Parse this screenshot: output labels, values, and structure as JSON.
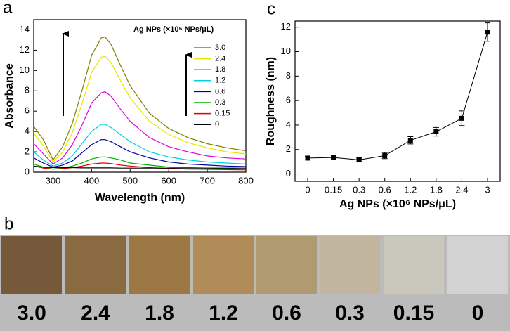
{
  "chart_data": [
    {
      "type": "line",
      "panel_label": "a",
      "x_label": "Wavelength (nm)",
      "y_label": "Absorbance",
      "legend_title": "Ag NPs (×10⁶ NPs/μL)",
      "x": [
        250,
        275,
        300,
        325,
        350,
        375,
        400,
        425,
        435,
        450,
        475,
        500,
        550,
        600,
        650,
        700,
        750,
        800
      ],
      "series": [
        {
          "name": "3.0",
          "color": "#808000",
          "values": [
            4.5,
            3.2,
            1.2,
            2.5,
            4.8,
            8.0,
            11.5,
            13.2,
            13.3,
            12.6,
            10.5,
            8.5,
            5.8,
            4.3,
            3.4,
            2.8,
            2.4,
            2.1
          ]
        },
        {
          "name": "2.4",
          "color": "#e6e600",
          "values": [
            3.8,
            2.6,
            1.0,
            2.0,
            3.9,
            6.7,
            9.8,
            11.3,
            11.4,
            10.8,
            9.0,
            7.3,
            5.0,
            3.7,
            2.9,
            2.4,
            2.0,
            1.8
          ]
        },
        {
          "name": "1.8",
          "color": "#e000e0",
          "values": [
            2.8,
            1.8,
            0.8,
            1.4,
            2.7,
            4.6,
            6.8,
            7.8,
            7.9,
            7.5,
            6.2,
            5.0,
            3.4,
            2.5,
            2.0,
            1.6,
            1.4,
            1.3
          ]
        },
        {
          "name": "1.2",
          "color": "#00d0e0",
          "values": [
            2.0,
            1.2,
            0.6,
            0.9,
            1.6,
            2.8,
            4.0,
            4.7,
            4.7,
            4.4,
            3.7,
            3.0,
            2.0,
            1.5,
            1.2,
            1.0,
            0.9,
            0.8
          ]
        },
        {
          "name": "0.6",
          "color": "#0000a0",
          "values": [
            1.4,
            0.9,
            0.5,
            0.7,
            1.1,
            1.9,
            2.7,
            3.2,
            3.2,
            3.0,
            2.5,
            2.0,
            1.4,
            1.0,
            0.8,
            0.7,
            0.6,
            0.55
          ]
        },
        {
          "name": "0.3",
          "color": "#00b000",
          "values": [
            0.8,
            0.5,
            0.3,
            0.4,
            0.6,
            0.9,
            1.3,
            1.5,
            1.5,
            1.4,
            1.2,
            0.9,
            0.7,
            0.5,
            0.45,
            0.4,
            0.35,
            0.3
          ]
        },
        {
          "name": "0.15",
          "color": "#e00000",
          "values": [
            0.6,
            0.4,
            0.3,
            0.35,
            0.45,
            0.6,
            0.8,
            0.9,
            0.9,
            0.85,
            0.7,
            0.6,
            0.45,
            0.35,
            0.3,
            0.28,
            0.25,
            0.22
          ]
        },
        {
          "name": "0",
          "color": "#000000",
          "values": [
            0.6,
            0.5,
            0.45,
            0.45,
            0.45,
            0.42,
            0.42,
            0.42,
            0.42,
            0.42,
            0.4,
            0.4,
            0.4,
            0.4,
            0.4,
            0.4,
            0.4,
            0.4
          ]
        }
      ],
      "xlim": [
        250,
        800
      ],
      "ylim": [
        0,
        15
      ],
      "xticks": [
        300,
        400,
        500,
        600,
        700,
        800
      ],
      "yticks": [
        0,
        2,
        4,
        6,
        8,
        10,
        12,
        14
      ]
    },
    {
      "type": "line",
      "panel_label": "c",
      "x_label": "Ag NPs (×10⁶ NPs/μL)",
      "y_label": "Roughness (nm)",
      "categories": [
        "0",
        "0.15",
        "0.3",
        "0.6",
        "1.2",
        "1.8",
        "2.4",
        "3"
      ],
      "values": [
        1.3,
        1.35,
        1.15,
        1.5,
        2.75,
        3.45,
        4.55,
        11.6
      ],
      "errors": [
        0.15,
        0.2,
        0.15,
        0.25,
        0.3,
        0.35,
        0.6,
        0.75
      ],
      "color": "#000000",
      "ylim": [
        -0.6,
        12.5
      ],
      "yticks": [
        0,
        2,
        4,
        6,
        8,
        10,
        12
      ]
    }
  ],
  "photo": {
    "panel_label": "b",
    "labels": [
      "3.0",
      "2.4",
      "1.8",
      "1.2",
      "0.6",
      "0.3",
      "0.15",
      "0"
    ],
    "colors": [
      "#76583a",
      "#8a6a40",
      "#9c7845",
      "#b18b58",
      "#b09a72",
      "#c1b59f",
      "#cac7bd",
      "#d2d2d2"
    ]
  }
}
